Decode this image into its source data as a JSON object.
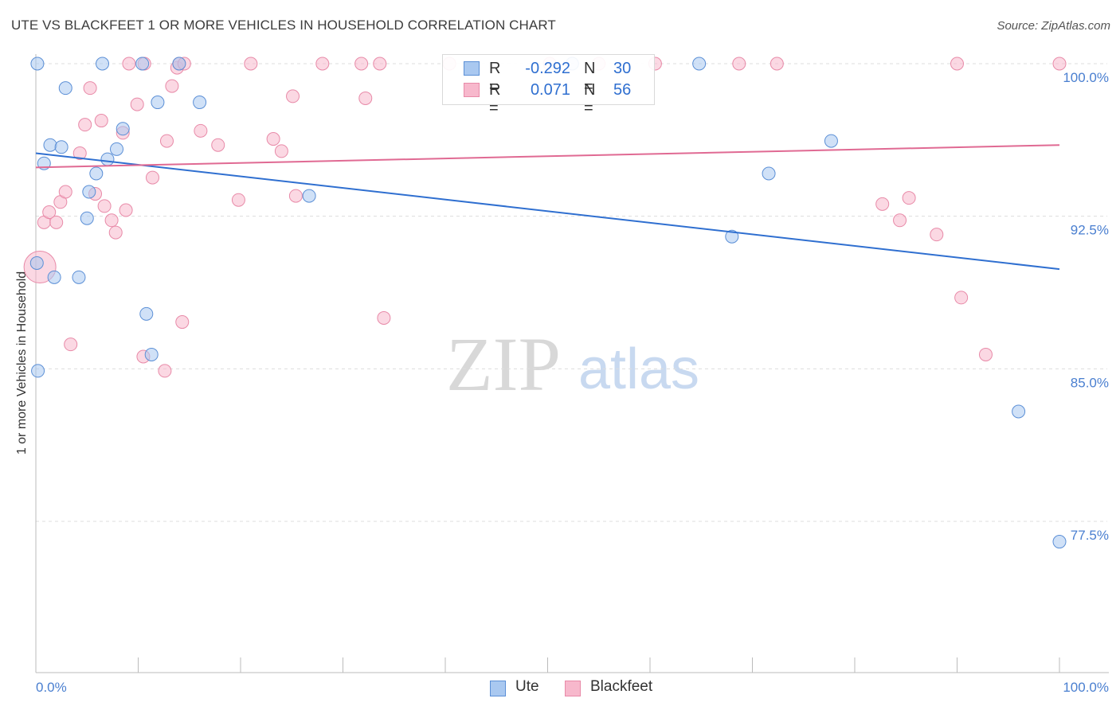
{
  "title": "UTE VS BLACKFEET 1 OR MORE VEHICLES IN HOUSEHOLD CORRELATION CHART",
  "source": "Source: ZipAtlas.com",
  "watermark": {
    "zip": "ZIP",
    "atlas": "atlas"
  },
  "legend": {
    "r_label": "R =",
    "n_label": "N =",
    "ute": {
      "r": "-0.292",
      "n": "30"
    },
    "blackfeet": {
      "r": "0.071",
      "n": "56"
    }
  },
  "bottom_legend": {
    "ute": "Ute",
    "blackfeet": "Blackfeet"
  },
  "colors": {
    "ute_fill": "#a9c8f0",
    "ute_stroke": "#5b8fd6",
    "ute_line": "#2f6fd0",
    "blackfeet_fill": "#f7b8cc",
    "blackfeet_stroke": "#e88aa8",
    "blackfeet_line": "#e06a93",
    "axis_label": "#4a7fd0",
    "grid": "#dddddd"
  },
  "chart_data": {
    "type": "scatter",
    "title": "UTE VS BLACKFEET 1 OR MORE VEHICLES IN HOUSEHOLD CORRELATION CHART",
    "xlabel": "",
    "ylabel": "1 or more Vehicles in Household",
    "xlim": [
      0,
      100
    ],
    "ylim": [
      70,
      100.8
    ],
    "x_tick_labels": [
      {
        "value": 0,
        "label": "0.0%"
      },
      {
        "value": 100,
        "label": "100.0%"
      }
    ],
    "y_tick_labels": [
      {
        "value": 100,
        "label": "100.0%"
      },
      {
        "value": 92.5,
        "label": "92.5%"
      },
      {
        "value": 85,
        "label": "85.0%"
      },
      {
        "value": 77.5,
        "label": "77.5%"
      }
    ],
    "grid": true,
    "legend_position": "top-center",
    "series": [
      {
        "name": "Ute",
        "color": "#a9c8f0",
        "points": [
          [
            0.2,
            84.9
          ],
          [
            0.8,
            95.1
          ],
          [
            1.4,
            96.0
          ],
          [
            1.8,
            89.5
          ],
          [
            2.5,
            95.9
          ],
          [
            2.9,
            98.8
          ],
          [
            4.2,
            89.5
          ],
          [
            5.0,
            92.4
          ],
          [
            5.2,
            93.7
          ],
          [
            5.9,
            94.6
          ],
          [
            6.5,
            100.0
          ],
          [
            7.0,
            95.3
          ],
          [
            7.9,
            95.8
          ],
          [
            8.5,
            96.8
          ],
          [
            10.4,
            100.0
          ],
          [
            10.8,
            87.7
          ],
          [
            11.3,
            85.7
          ],
          [
            11.9,
            98.1
          ],
          [
            14.0,
            100.0
          ],
          [
            16.0,
            98.1
          ],
          [
            26.7,
            93.5
          ],
          [
            52.4,
            100.0
          ],
          [
            64.8,
            100.0
          ],
          [
            68.0,
            91.5
          ],
          [
            71.6,
            94.6
          ],
          [
            77.7,
            96.2
          ],
          [
            96.0,
            82.9
          ],
          [
            100.0,
            76.5
          ],
          [
            0.1,
            90.2
          ],
          [
            0.15,
            100.0
          ]
        ]
      },
      {
        "name": "Blackfeet",
        "color": "#f7b8cc",
        "points": [
          [
            0.4,
            90.0
          ],
          [
            0.8,
            92.2
          ],
          [
            1.3,
            92.7
          ],
          [
            2.0,
            92.2
          ],
          [
            2.4,
            93.2
          ],
          [
            2.9,
            93.7
          ],
          [
            3.4,
            86.2
          ],
          [
            4.3,
            95.6
          ],
          [
            4.8,
            97.0
          ],
          [
            5.3,
            98.8
          ],
          [
            5.8,
            93.6
          ],
          [
            6.4,
            97.2
          ],
          [
            6.7,
            93.0
          ],
          [
            7.4,
            92.3
          ],
          [
            7.8,
            91.7
          ],
          [
            8.5,
            96.6
          ],
          [
            8.8,
            92.8
          ],
          [
            9.1,
            100.0
          ],
          [
            9.9,
            98.0
          ],
          [
            10.5,
            85.6
          ],
          [
            10.6,
            100.0
          ],
          [
            11.4,
            94.4
          ],
          [
            12.6,
            84.9
          ],
          [
            12.8,
            96.2
          ],
          [
            13.3,
            98.9
          ],
          [
            13.8,
            99.8
          ],
          [
            14.0,
            100.0
          ],
          [
            14.3,
            87.3
          ],
          [
            14.5,
            100.0
          ],
          [
            16.1,
            96.7
          ],
          [
            17.8,
            96.0
          ],
          [
            19.8,
            93.3
          ],
          [
            21.0,
            100.0
          ],
          [
            23.2,
            96.3
          ],
          [
            24.0,
            95.7
          ],
          [
            25.1,
            98.4
          ],
          [
            25.4,
            93.5
          ],
          [
            28.0,
            100.0
          ],
          [
            31.8,
            100.0
          ],
          [
            32.2,
            98.3
          ],
          [
            33.6,
            100.0
          ],
          [
            34.0,
            87.5
          ],
          [
            40.4,
            100.0
          ],
          [
            50.2,
            100.0
          ],
          [
            55.0,
            100.0
          ],
          [
            60.5,
            100.0
          ],
          [
            68.7,
            100.0
          ],
          [
            72.4,
            100.0
          ],
          [
            82.7,
            93.1
          ],
          [
            84.4,
            92.3
          ],
          [
            85.3,
            93.4
          ],
          [
            88.0,
            91.6
          ],
          [
            90.0,
            100.0
          ],
          [
            90.4,
            88.5
          ],
          [
            92.8,
            85.7
          ],
          [
            100.0,
            100.0
          ]
        ]
      }
    ],
    "trendlines": [
      {
        "name": "Ute",
        "x": [
          0,
          100
        ],
        "y": [
          95.6,
          89.9
        ]
      },
      {
        "name": "Blackfeet",
        "x": [
          0,
          100
        ],
        "y": [
          94.9,
          96.0
        ]
      }
    ]
  }
}
